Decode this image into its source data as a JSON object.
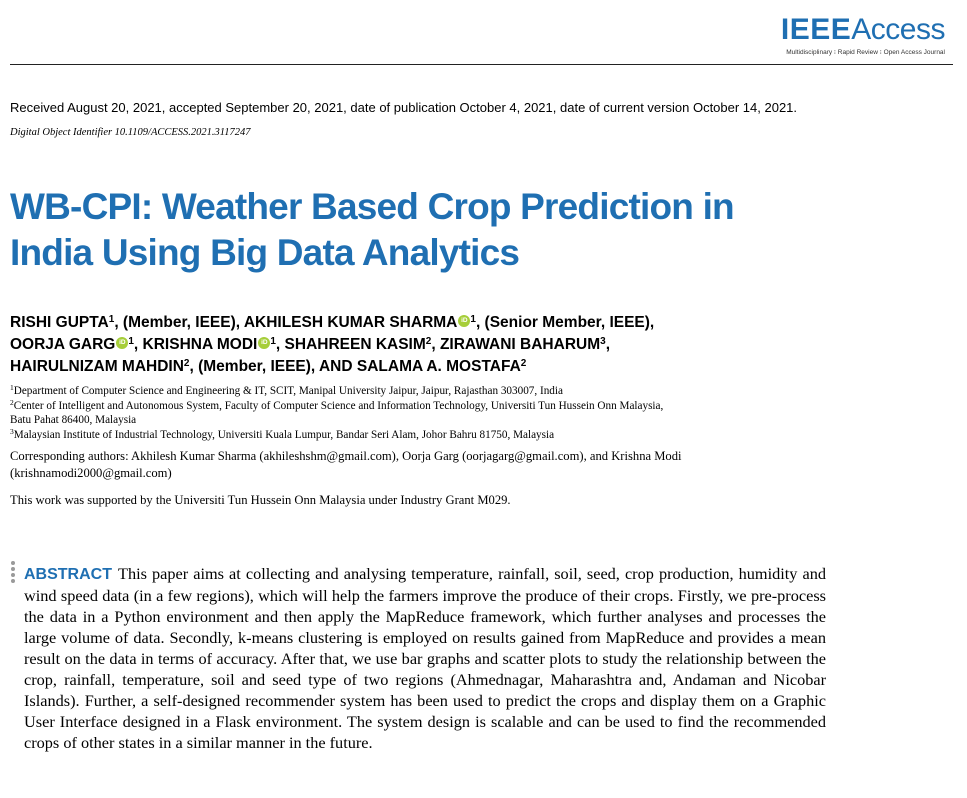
{
  "header": {
    "logo_ieee": "IEEE",
    "logo_access": "Access",
    "logo_tagline": "Multidisciplinary ⁝ Rapid Review ⁝ Open Access Journal",
    "brand_color": "#1f6fb2"
  },
  "meta": {
    "received": "Received August 20, 2021, accepted September 20, 2021, date of publication October 4, 2021, date of current version October 14, 2021.",
    "doi": "Digital Object Identifier 10.1109/ACCESS.2021.3117247"
  },
  "paper": {
    "title_line1": "WB-CPI: Weather Based Crop Prediction in",
    "title_line2": "India Using Big Data Analytics"
  },
  "authors": {
    "a1_name": "RISHI GUPTA",
    "a1_aff": "1",
    "a1_role": ", (Member, IEEE), ",
    "a2_name": "AKHILESH KUMAR SHARMA",
    "a2_aff": "1",
    "a2_role": ", (Senior Member, IEEE),",
    "a3_name": "OORJA GARG",
    "a3_aff": "1",
    "sep1": ", ",
    "a4_name": "KRISHNA MODI",
    "a4_aff": "1",
    "sep2": ", ",
    "a5_name": "SHAHREEN KASIM",
    "a5_aff": "2",
    "sep3": ", ",
    "a6_name": "ZIRAWANI BAHARUM",
    "a6_aff": "3",
    "sep4": ",",
    "a7_name": "HAIRULNIZAM MAHDIN",
    "a7_aff": "2",
    "a7_role": ", (Member, IEEE), ",
    "a8_name": "AND SALAMA A. MOSTAFA",
    "a8_aff": "2",
    "orcid_label": "iD",
    "orcid_color": "#a6ce39"
  },
  "affiliations": {
    "n1": "1",
    "t1": "Department of Computer Science and Engineering & IT, SCIT, Manipal University Jaipur, Jaipur, Rajasthan 303007, India",
    "n2": "2",
    "t2a": "Center of Intelligent and Autonomous System, Faculty of Computer Science and Information Technology, Universiti Tun Hussein Onn Malaysia,",
    "t2b": "Batu Pahat 86400, Malaysia",
    "n3": "3",
    "t3": "Malaysian Institute of Industrial Technology, Universiti Kuala Lumpur, Bandar Seri Alam, Johor Bahru 81750, Malaysia"
  },
  "correspondence": {
    "line1": "Corresponding authors: Akhilesh Kumar Sharma (akhileshshm@gmail.com), Oorja Garg (oorjagarg@gmail.com), and Krishna Modi",
    "line2": "(krishnamodi2000@gmail.com)"
  },
  "support": "This work was supported by the Universiti Tun Hussein Onn Malaysia under Industry Grant M029.",
  "abstract": {
    "label": "ABSTRACT",
    "text": "This paper aims at collecting and analysing temperature, rainfall, soil, seed, crop production, humidity and wind speed data (in a few regions), which will help the farmers improve the produce of their crops. Firstly, we pre-process the data in a Python environment and then apply the MapReduce framework, which further analyses and processes the large volume of data. Secondly, k-means clustering is employed on results gained from MapReduce and provides a mean result on the data in terms of accuracy. After that, we use bar graphs and scatter plots to study the relationship between the crop, rainfall, temperature, soil and seed type of two regions (Ahmednagar, Maharashtra and, Andaman and Nicobar Islands). Further, a self-designed recommender system has been used to predict the crops and display them on a Graphic User Interface designed in a Flask environment. The system design is scalable and can be used to find the recommended crops of other states in a similar manner in the future."
  }
}
